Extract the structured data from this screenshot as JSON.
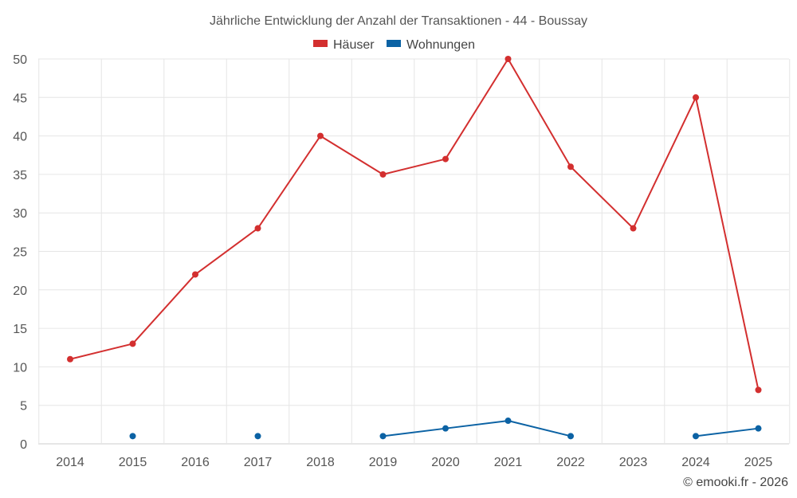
{
  "chart_data": {
    "type": "line",
    "title": "Jährliche Entwicklung der Anzahl der Transaktionen - 44 - Boussay",
    "x": [
      "2014",
      "2015",
      "2016",
      "2017",
      "2018",
      "2019",
      "2020",
      "2021",
      "2022",
      "2023",
      "2024",
      "2025"
    ],
    "ylim": [
      0,
      50
    ],
    "yticks": [
      0,
      5,
      10,
      15,
      20,
      25,
      30,
      35,
      40,
      45,
      50
    ],
    "grid": true,
    "legend_position": "top-center",
    "series": [
      {
        "name": "Häuser",
        "color": "#d32f2f",
        "values": [
          11,
          13,
          22,
          28,
          40,
          35,
          37,
          50,
          36,
          28,
          45,
          7
        ]
      },
      {
        "name": "Wohnungen",
        "color": "#0b62a4",
        "values": [
          null,
          1,
          null,
          1,
          null,
          1,
          2,
          3,
          1,
          null,
          1,
          2
        ]
      }
    ]
  },
  "credit": "© emooki.fr - 2026"
}
